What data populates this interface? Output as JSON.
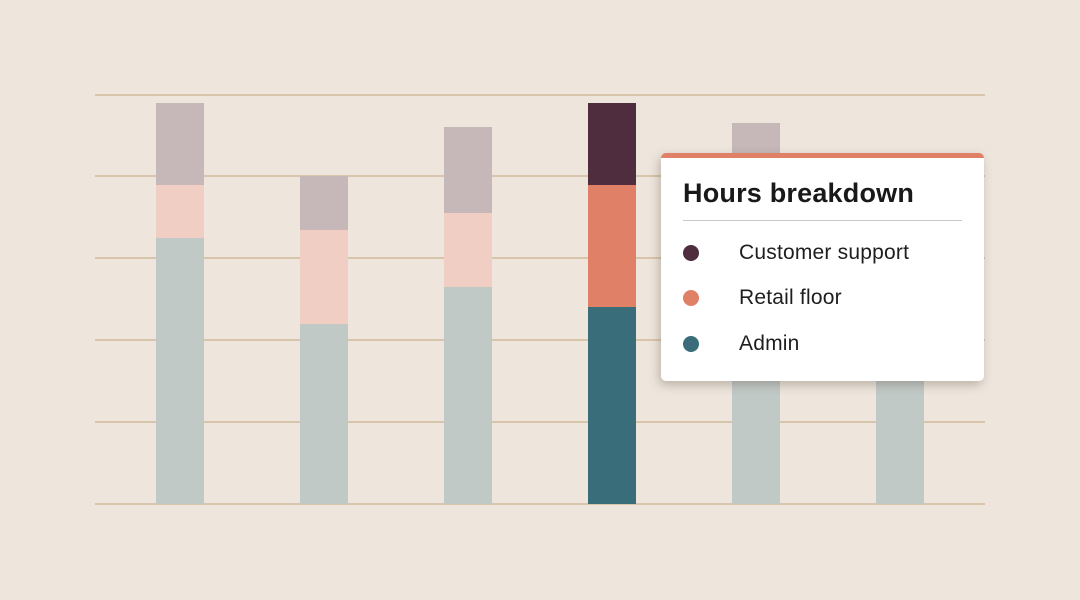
{
  "page": {
    "background": "#EEE6DD"
  },
  "tooltip": {
    "title": "Hours breakdown",
    "accent_color": "#E08167",
    "items": [
      {
        "label": "Customer support",
        "color": "#4F2C3E"
      },
      {
        "label": "Retail floor",
        "color": "#E08167"
      },
      {
        "label": "Admin",
        "color": "#3A6D7A"
      }
    ]
  },
  "chart_data": {
    "type": "bar",
    "stacked": true,
    "title": "",
    "xlabel": "",
    "ylabel": "",
    "axis_tick_labels_visible": false,
    "grid": true,
    "gridline_count": 6,
    "ylim": [
      0,
      50
    ],
    "legend": [
      "Customer support",
      "Retail floor",
      "Admin"
    ],
    "legend_position": "tooltip-overlay-top-right",
    "series_keys_bottom_to_top": [
      "admin",
      "retail_floor",
      "customer_support"
    ],
    "bars": [
      {
        "admin": 32.5,
        "retail_floor": 6.5,
        "customer_support": 10
      },
      {
        "admin": 22,
        "retail_floor": 11.5,
        "customer_support": 6.5
      },
      {
        "admin": 26.5,
        "retail_floor": 9,
        "customer_support": 10.5
      },
      {
        "admin": 24,
        "retail_floor": 15,
        "customer_support": 10
      },
      {
        "admin": 22.5,
        "retail_floor": 11,
        "customer_support": 13
      },
      {
        "admin": 17.5,
        "retail_floor": 8.5,
        "customer_support": 6
      }
    ],
    "highlighted_bar_index": 3,
    "colors": {
      "muted": {
        "admin": "#C1C9C7",
        "retail_floor": "#F0CEC4",
        "customer_support": "#C6B7B8"
      },
      "highlight": {
        "admin": "#3A6D7A",
        "retail_floor": "#E08167",
        "customer_support": "#4F2C3E"
      },
      "gridline": "#D9C5AB"
    },
    "note": "No axis or category labels are shown; bars 5 and 6 are partially hidden behind the tooltip, their segment splits are estimated."
  }
}
